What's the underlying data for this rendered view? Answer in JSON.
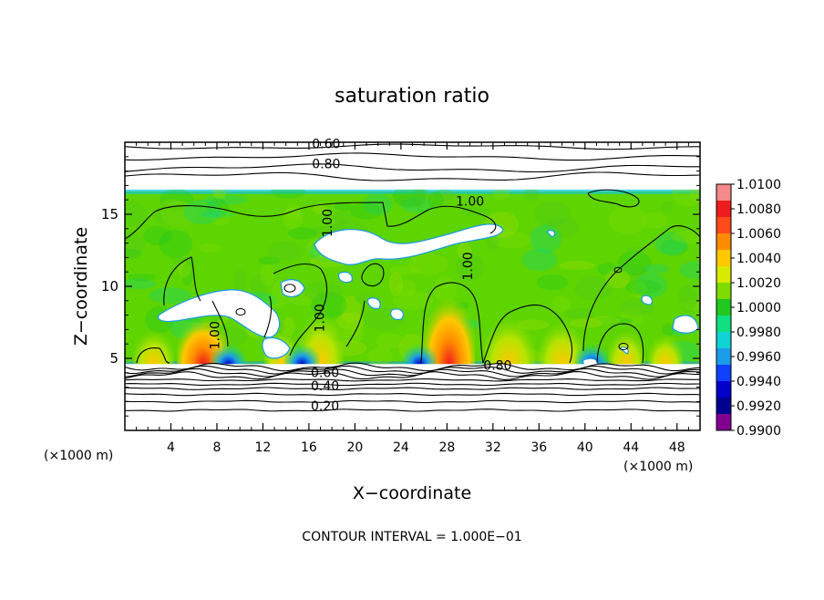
{
  "chart_data": {
    "type": "heatmap",
    "title": "saturation ratio",
    "xlabel": "X−coordinate",
    "ylabel": "Z−coordinate",
    "x_unit_left": "(×1000 m)",
    "x_unit_right": "(×1000 m)",
    "xlim": [
      0,
      50
    ],
    "ylim": [
      0,
      20
    ],
    "x_ticks": [
      4,
      8,
      12,
      16,
      20,
      24,
      28,
      32,
      36,
      40,
      44,
      48
    ],
    "y_ticks": [
      5,
      10,
      15
    ],
    "colorbar_ticks": [
      "1.0100",
      "1.0080",
      "1.0060",
      "1.0040",
      "1.0020",
      "1.0000",
      "0.9980",
      "0.9960",
      "0.9940",
      "0.9920",
      "0.9900"
    ],
    "colorbar_colors": [
      "#f48a8a",
      "#ee1c1c",
      "#ff4a1a",
      "#ff8c00",
      "#ffc800",
      "#d8ea00",
      "#7edc00",
      "#20c820",
      "#10e080",
      "#10d4d4",
      "#1a9ce8",
      "#1040ff",
      "#0000c8",
      "#000090",
      "#800090"
    ],
    "cloud_field_bounds": {
      "z_bottom": 4.6,
      "z_top": 16.6
    },
    "contour_interval_text": "CONTOUR INTERVAL = 1.000E−01",
    "contour_labels": [
      {
        "text": "0.60",
        "x": 17.5,
        "z": 19.6
      },
      {
        "text": "0.80",
        "x": 17.5,
        "z": 18.2
      },
      {
        "text": "1.00",
        "x": 30.0,
        "z": 15.6
      },
      {
        "text": "1.00",
        "x": 18.0,
        "z": 14.4
      },
      {
        "text": "1.00",
        "x": 30.2,
        "z": 11.4
      },
      {
        "text": "1.00",
        "x": 17.3,
        "z": 7.8
      },
      {
        "text": "1.00",
        "x": 8.2,
        "z": 6.6
      },
      {
        "text": "0.80",
        "x": 32.4,
        "z": 4.2
      },
      {
        "text": "0.60",
        "x": 17.4,
        "z": 3.7
      },
      {
        "text": "0.40",
        "x": 17.4,
        "z": 2.8
      },
      {
        "text": "0.20",
        "x": 17.4,
        "z": 1.4
      }
    ],
    "upper_contours_z": [
      19.7,
      19.0,
      18.2,
      17.6
    ],
    "lower_contours_z": [
      4.4,
      4.2,
      4.0,
      3.8,
      3.5,
      3.2,
      2.9,
      2.5,
      2.0,
      1.4
    ]
  }
}
